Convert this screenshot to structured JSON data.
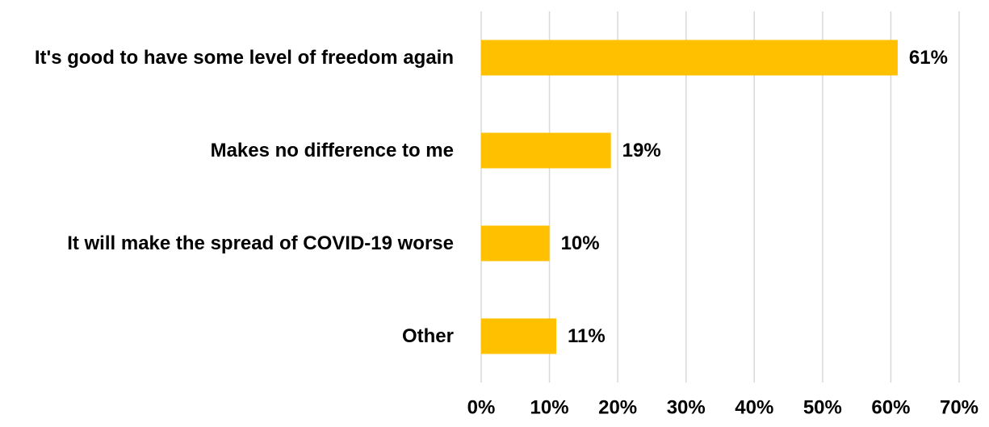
{
  "chart_data": {
    "type": "bar",
    "orientation": "horizontal",
    "categories": [
      "It's good to have some level of freedom again",
      "Makes no difference to me",
      "It will make the spread of COVID-19 worse",
      "Other"
    ],
    "values": [
      61,
      19,
      10,
      11
    ],
    "value_labels": [
      "61%",
      "19%",
      "10%",
      "11%"
    ],
    "xlim": [
      0,
      70
    ],
    "x_ticks": [
      0,
      10,
      20,
      30,
      40,
      50,
      60,
      70
    ],
    "x_tick_labels": [
      "0%",
      "10%",
      "20%",
      "30%",
      "40%",
      "50%",
      "60%",
      "70%"
    ],
    "grid": "vertical",
    "bar_color": "#ffc000",
    "title": "",
    "xlabel": "",
    "ylabel": ""
  }
}
